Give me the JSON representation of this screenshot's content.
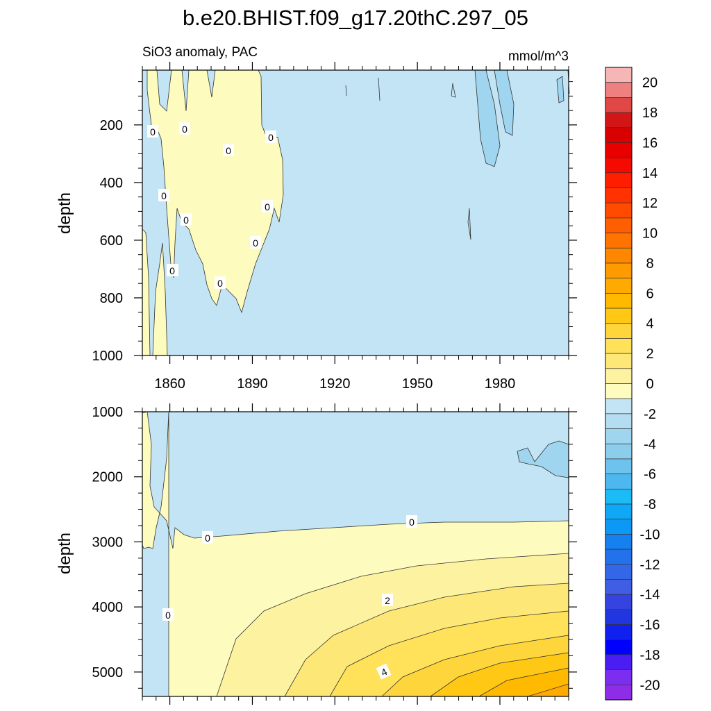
{
  "title": "b.e20.BHIST.f09_g17.20thC.297_05",
  "chart_data": [
    {
      "type": "contour",
      "panel": "upper",
      "left_title": "SiO3 anomaly, PAC",
      "right_title": "mmol/m^3",
      "ylabel": "depth",
      "x_range": [
        1850,
        2005
      ],
      "x_ticks": [
        1860,
        1890,
        1920,
        1950,
        1980
      ],
      "x_tick_labels": [
        "1860",
        "1890",
        "1920",
        "1950",
        "1980"
      ],
      "y_range": [
        10,
        1000
      ],
      "y_inverted": true,
      "y_ticks": [
        200,
        400,
        600,
        800,
        1000
      ],
      "y_tick_labels": [
        "200",
        "400",
        "600",
        "800",
        "1000"
      ],
      "contour_labels": [
        "0",
        "0",
        "0",
        "0",
        "0",
        "0",
        "0",
        "0",
        "0",
        "0",
        "0"
      ]
    },
    {
      "type": "contour",
      "panel": "lower",
      "ylabel": "depth",
      "x_range": [
        1850,
        2005
      ],
      "x_ticks": [
        1860,
        1890,
        1920,
        1950,
        1980
      ],
      "y_range": [
        1000,
        5375
      ],
      "y_inverted": true,
      "y_ticks": [
        1000,
        2000,
        3000,
        4000,
        5000
      ],
      "y_tick_labels": [
        "1000",
        "2000",
        "3000",
        "4000",
        "5000"
      ],
      "contour_labels": [
        "0",
        "0",
        "0",
        "2",
        "4"
      ]
    }
  ],
  "colorbar": {
    "levels": [
      20,
      18,
      16,
      14,
      12,
      10,
      8,
      6,
      4,
      2,
      0,
      -2,
      -4,
      -6,
      -8,
      -10,
      -12,
      -14,
      -16,
      -18,
      -20
    ],
    "labels": [
      "20",
      "18",
      "16",
      "14",
      "12",
      "10",
      "8",
      "6",
      "4",
      "2",
      "0",
      "-2",
      "-4",
      "-6",
      "-8",
      "-10",
      "-12",
      "-14",
      "-16",
      "-18",
      "-20"
    ],
    "colors": [
      "#f6b6b6",
      "#ee8080",
      "#e04848",
      "#d21616",
      "#d90000",
      "#e80000",
      "#f40a00",
      "#ff1e00",
      "#ff3200",
      "#ff4b00",
      "#ff5f00",
      "#ff7300",
      "#ff8700",
      "#ff9a00",
      "#ffaa00",
      "#ffba00",
      "#ffc814",
      "#ffd53c",
      "#ffe15a",
      "#fde877",
      "#fdf29f",
      "#fdfbbe",
      "#c3e4f4",
      "#b5ddf1",
      "#9fd5ee",
      "#8ccdeb",
      "#6ec3ee",
      "#4db8f0",
      "#1bbcf5",
      "#0ea8f6",
      "#0c98f5",
      "#1580f0",
      "#2471ec",
      "#3466e8",
      "#405ee4",
      "#3544e0",
      "#2236e0",
      "#1020f0",
      "#0000ff",
      "#4a1ef2",
      "#7b2ef0",
      "#8e2ce8"
    ]
  }
}
